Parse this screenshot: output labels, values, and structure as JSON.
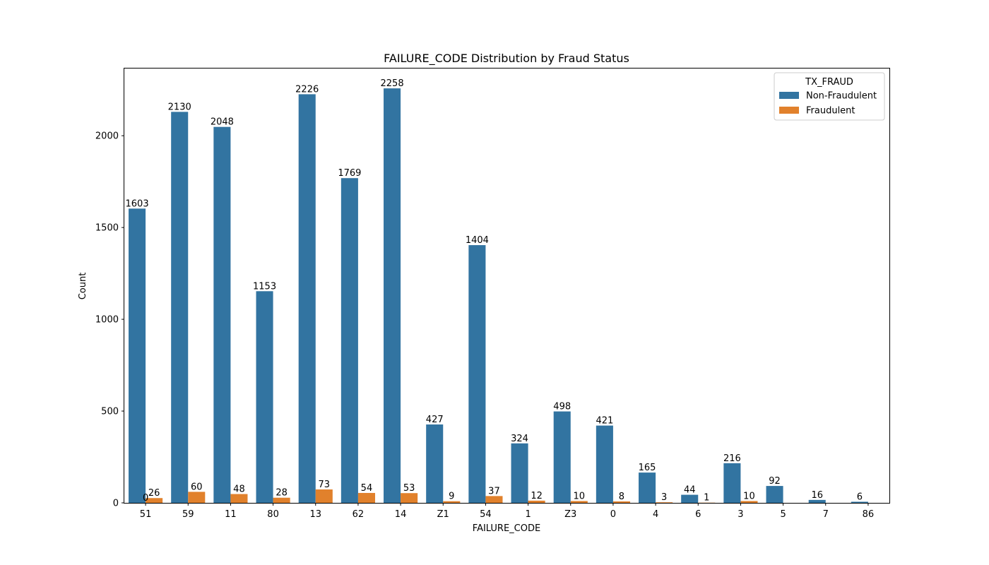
{
  "chart_data": {
    "type": "bar",
    "title": "FAILURE_CODE Distribution by Fraud Status",
    "xlabel": "FAILURE_CODE",
    "ylabel": "Count",
    "ylim": [
      0,
      2370
    ],
    "yticks": [
      0,
      500,
      1000,
      1500,
      2000
    ],
    "categories": [
      "51",
      "59",
      "11",
      "80",
      "13",
      "62",
      "14",
      "Z1",
      "54",
      "1",
      "Z3",
      "0",
      "4",
      "6",
      "3",
      "5",
      "7",
      "86"
    ],
    "legend": {
      "title": "TX_FRAUD",
      "placement": "upper right"
    },
    "series": [
      {
        "name": "Non-Fraudulent",
        "color": "#3274a1",
        "values": [
          1603,
          2130,
          2048,
          1153,
          2226,
          1769,
          2258,
          427,
          1404,
          324,
          498,
          421,
          165,
          44,
          216,
          92,
          16,
          6
        ],
        "labels": [
          "1603",
          "2130",
          "2048",
          "1153",
          "2226",
          "1769",
          "2258",
          "427",
          "1404",
          "324",
          "498",
          "421",
          "165",
          "44",
          "216",
          "92",
          "16",
          "6"
        ]
      },
      {
        "name": "Fraudulent",
        "color": "#e1812c",
        "values": [
          26,
          60,
          48,
          28,
          73,
          54,
          53,
          9,
          37,
          12,
          10,
          8,
          3,
          1,
          10,
          0,
          0,
          0
        ],
        "labels": [
          "26",
          "60",
          "48",
          "28",
          "73",
          "54",
          "53",
          "9",
          "37",
          "12",
          "10",
          "8",
          "3",
          "1",
          "10",
          "",
          "",
          ""
        ]
      }
    ],
    "extra_labels": [
      {
        "text": "0",
        "category_index": 0,
        "value": 0
      }
    ],
    "grid": false
  }
}
